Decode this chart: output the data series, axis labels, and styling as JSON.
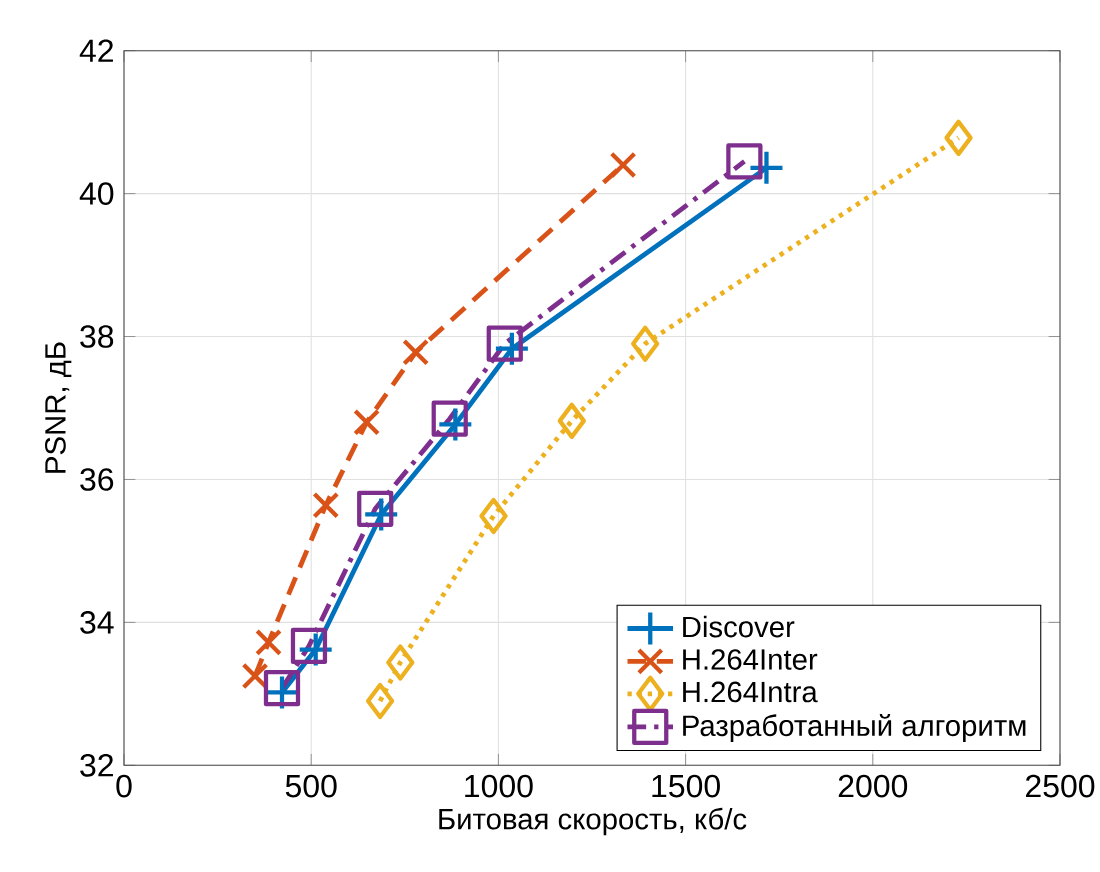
{
  "chart_data": {
    "type": "line",
    "xlabel": "Битовая скорость, кб/с",
    "ylabel": "PSNR, дБ",
    "xlim": [
      0,
      2500
    ],
    "xticks": [
      0,
      500,
      1000,
      1500,
      2000,
      2500
    ],
    "ylim": [
      32,
      42
    ],
    "yticks": [
      32,
      34,
      36,
      38,
      40,
      42
    ],
    "grid": true,
    "legend": "bottom right",
    "series": [
      {
        "name": "Discover",
        "color": "#0072bd",
        "marker": "cross",
        "line_style": "solid",
        "x": [
          422,
          512,
          687,
          885,
          1036,
          1716
        ],
        "values": [
          33.02,
          33.62,
          35.51,
          36.77,
          37.83,
          40.36
        ]
      },
      {
        "name": "H.264Inter",
        "color": "#d95319",
        "marker": "x",
        "line_style": "dashed",
        "x": [
          350,
          386,
          539,
          648,
          779,
          1333
        ],
        "values": [
          33.25,
          33.72,
          35.64,
          36.8,
          37.78,
          40.4
        ]
      },
      {
        "name": "H.264Intra",
        "color": "#edb120",
        "marker": "diamond",
        "line_style": "dotted",
        "x": [
          684,
          738,
          987,
          1196,
          1392,
          2229
        ],
        "values": [
          32.9,
          33.44,
          35.49,
          36.82,
          37.9,
          40.78
        ]
      },
      {
        "name": "Разработанный алгоритм",
        "color": "#7e2f8e",
        "marker": "square",
        "line_style": "dashdot",
        "x": [
          422,
          494,
          671,
          870,
          1017,
          1657
        ],
        "values": [
          33.08,
          33.67,
          35.59,
          36.85,
          37.9,
          40.45
        ]
      }
    ]
  }
}
